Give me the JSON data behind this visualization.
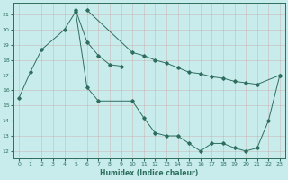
{
  "xlabel": "Humidex (Indice chaleur)",
  "background_color": "#c8ecec",
  "grid_color": "#b0cccc",
  "line_color": "#2e6e5e",
  "x_all": [
    0,
    1,
    2,
    3,
    4,
    5,
    6,
    7,
    8,
    9,
    10,
    11,
    12,
    13,
    14,
    15,
    16,
    17,
    18,
    19,
    20,
    21,
    22,
    23
  ],
  "line_bottom": [
    15.5,
    17.2,
    18.7,
    null,
    20.0,
    21.2,
    16.2,
    15.3,
    null,
    null,
    15.3,
    14.2,
    13.2,
    13.0,
    13.0,
    12.5,
    12.0,
    12.5,
    12.5,
    12.2,
    12.0,
    12.2,
    14.0,
    17.0
  ],
  "line_top": [
    null,
    null,
    null,
    null,
    null,
    21.3,
    19.2,
    18.3,
    17.7,
    17.6,
    null,
    null,
    null,
    null,
    null,
    null,
    null,
    null,
    null,
    null,
    null,
    null,
    null,
    null
  ],
  "line_diag": [
    null,
    null,
    null,
    null,
    null,
    null,
    21.3,
    null,
    null,
    null,
    18.5,
    18.3,
    18.0,
    17.8,
    17.5,
    17.2,
    17.1,
    16.9,
    16.8,
    16.6,
    16.5,
    16.4,
    null,
    17.0
  ],
  "ylim": [
    11.5,
    21.8
  ],
  "xlim": [
    -0.5,
    23.5
  ],
  "yticks": [
    12,
    13,
    14,
    15,
    16,
    17,
    18,
    19,
    20,
    21
  ],
  "xticks": [
    0,
    1,
    2,
    3,
    4,
    5,
    6,
    7,
    8,
    9,
    10,
    11,
    12,
    13,
    14,
    15,
    16,
    17,
    18,
    19,
    20,
    21,
    22,
    23
  ]
}
